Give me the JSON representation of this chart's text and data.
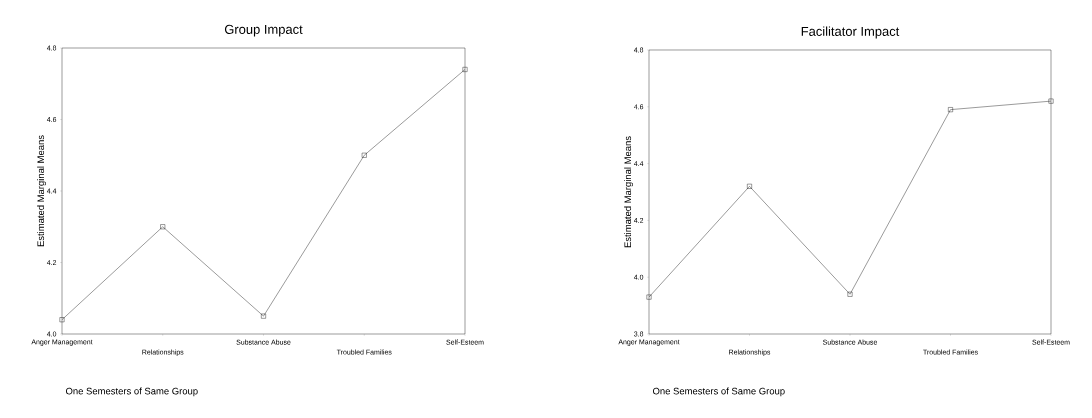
{
  "chart_data": [
    {
      "type": "line",
      "title": "Group Impact",
      "xlabel": "One Semesters of Same Group",
      "ylabel": "Estimated Marginal Means",
      "categories": [
        "Anger Management",
        "Relationships",
        "Substance Abuse",
        "Troubled Families",
        "Self-Esteem"
      ],
      "values": [
        4.04,
        4.3,
        4.05,
        4.5,
        4.74
      ],
      "color": "#000000",
      "marker": "square",
      "ylim": [
        4.0,
        4.8
      ],
      "yticks": [
        {
          "value": 4.0,
          "label": "4.0"
        },
        4.2,
        4.4,
        4.6,
        4.8
      ]
    },
    {
      "type": "line",
      "title": "Facilitator Impact",
      "xlabel": "One Semesters of Same Group",
      "ylabel": "Estimated Marginal Means",
      "categories": [
        "Anger Management",
        "Relationships",
        "Substance Abuse",
        "Troubled Families",
        "Self-Esteem"
      ],
      "values": [
        3.93,
        4.32,
        3.94,
        4.59,
        4.62
      ],
      "color": "#000000",
      "marker": "square",
      "ylim": [
        3.8,
        4.8
      ],
      "yticks": [
        3.8,
        {
          "value": 4.0,
          "label": "4.0"
        },
        4.2,
        4.4,
        4.6,
        4.8
      ]
    }
  ]
}
